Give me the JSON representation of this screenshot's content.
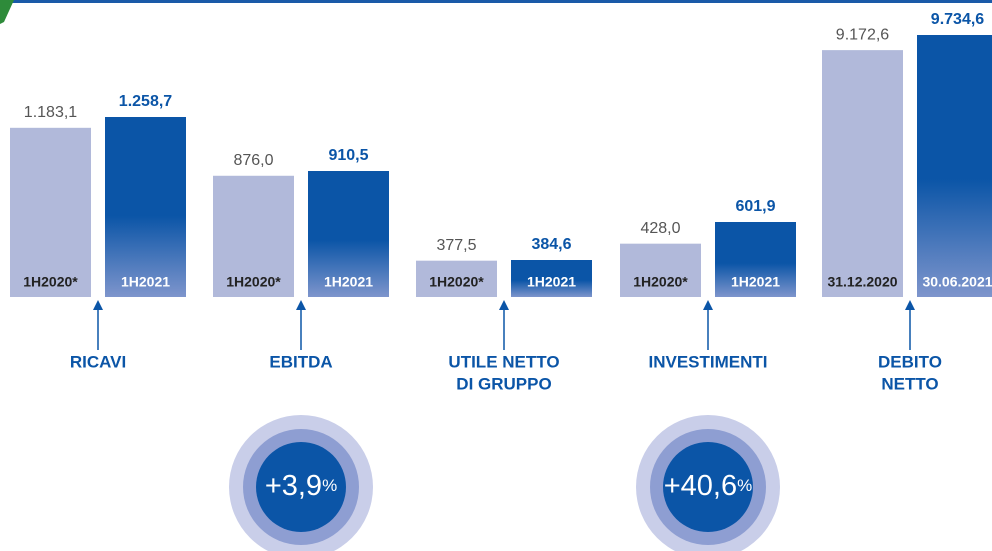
{
  "chart_data": [
    {
      "type": "bar",
      "label": [
        "RICAVI"
      ],
      "categories": [
        "1H2020*",
        "1H2021"
      ],
      "values": [
        1183.1,
        1258.7
      ],
      "value_labels": [
        "1.183,1",
        "1.258,7"
      ],
      "colors": [
        "#b1b9da",
        "#0b55a7"
      ]
    },
    {
      "type": "bar",
      "label": [
        "EBITDA"
      ],
      "categories": [
        "1H2020*",
        "1H2021"
      ],
      "values": [
        876.0,
        910.5
      ],
      "value_labels": [
        "876,0",
        "910,5"
      ],
      "colors": [
        "#b1b9da",
        "#0b55a7"
      ],
      "badge": {
        "text": "+3,9",
        "unit": "%"
      }
    },
    {
      "type": "bar",
      "label": [
        "UTILE NETTO",
        "DI GRUPPO"
      ],
      "categories": [
        "1H2020*",
        "1H2021"
      ],
      "values": [
        377.5,
        384.6
      ],
      "value_labels": [
        "377,5",
        "384,6"
      ],
      "colors": [
        "#b1b9da",
        "#0b55a7"
      ]
    },
    {
      "type": "bar",
      "label": [
        "INVESTIMENTI"
      ],
      "categories": [
        "1H2020*",
        "1H2021"
      ],
      "values": [
        428.0,
        601.9
      ],
      "value_labels": [
        "428,0",
        "601,9"
      ],
      "colors": [
        "#b1b9da",
        "#0b55a7"
      ],
      "badge": {
        "text": "+40,6",
        "unit": "%"
      }
    },
    {
      "type": "bar",
      "label": [
        "DEBITO",
        "NETTO"
      ],
      "categories": [
        "31.12.2020",
        "30.06.2021"
      ],
      "values": [
        9172.6,
        9734.6
      ],
      "value_labels": [
        "9.172,6",
        "9.734,6"
      ],
      "colors": [
        "#b1b9da",
        "#0b55a7"
      ]
    }
  ]
}
